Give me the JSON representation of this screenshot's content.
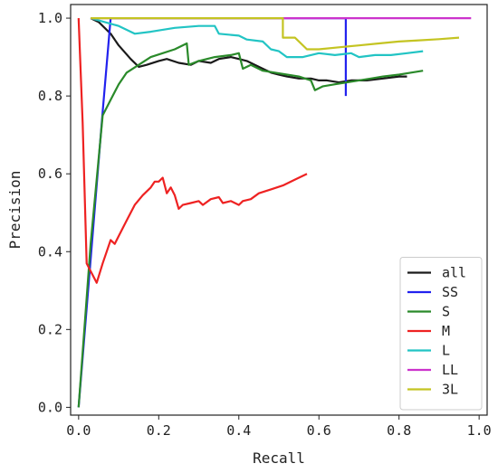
{
  "chart_data": {
    "type": "line",
    "title": "",
    "xlabel": "Recall",
    "ylabel": "Precision",
    "xlim": [
      -0.02,
      1.02
    ],
    "ylim": [
      -0.02,
      1.035
    ],
    "xticks": [
      "0.0",
      "0.2",
      "0.4",
      "0.6",
      "0.8",
      "1.0"
    ],
    "xtick_values": [
      0.0,
      0.2,
      0.4,
      0.6,
      0.8,
      1.0
    ],
    "yticks": [
      "0.0",
      "0.2",
      "0.4",
      "0.6",
      "0.8",
      "1.0"
    ],
    "ytick_values": [
      0.0,
      0.2,
      0.4,
      0.6,
      0.8,
      1.0
    ],
    "grid": false,
    "legend_position": "lower-right",
    "series": [
      {
        "name": "all",
        "color": "#1a1a1a",
        "points": [
          [
            0.03,
            1.0
          ],
          [
            0.05,
            0.99
          ],
          [
            0.08,
            0.96
          ],
          [
            0.1,
            0.93
          ],
          [
            0.13,
            0.895
          ],
          [
            0.15,
            0.875
          ],
          [
            0.17,
            0.88
          ],
          [
            0.2,
            0.89
          ],
          [
            0.22,
            0.895
          ],
          [
            0.25,
            0.885
          ],
          [
            0.28,
            0.88
          ],
          [
            0.3,
            0.89
          ],
          [
            0.33,
            0.885
          ],
          [
            0.35,
            0.895
          ],
          [
            0.38,
            0.9
          ],
          [
            0.4,
            0.895
          ],
          [
            0.42,
            0.89
          ],
          [
            0.44,
            0.88
          ],
          [
            0.46,
            0.87
          ],
          [
            0.48,
            0.86
          ],
          [
            0.5,
            0.855
          ],
          [
            0.52,
            0.85
          ],
          [
            0.55,
            0.845
          ],
          [
            0.58,
            0.845
          ],
          [
            0.6,
            0.84
          ],
          [
            0.62,
            0.84
          ],
          [
            0.65,
            0.835
          ],
          [
            0.68,
            0.84
          ],
          [
            0.72,
            0.84
          ],
          [
            0.76,
            0.845
          ],
          [
            0.8,
            0.85
          ],
          [
            0.82,
            0.85
          ]
        ]
      },
      {
        "name": "SS",
        "color": "#2222ee",
        "points": [
          [
            0.0,
            0.0
          ],
          [
            0.06,
            0.76
          ],
          [
            0.08,
            1.0
          ],
          [
            0.667,
            1.0
          ],
          [
            0.667,
            0.8
          ]
        ]
      },
      {
        "name": "S",
        "color": "#2a8a2a",
        "points": [
          [
            0.0,
            0.0
          ],
          [
            0.03,
            0.42
          ],
          [
            0.06,
            0.75
          ],
          [
            0.08,
            0.79
          ],
          [
            0.1,
            0.83
          ],
          [
            0.12,
            0.86
          ],
          [
            0.15,
            0.88
          ],
          [
            0.18,
            0.9
          ],
          [
            0.21,
            0.91
          ],
          [
            0.24,
            0.92
          ],
          [
            0.27,
            0.935
          ],
          [
            0.275,
            0.88
          ],
          [
            0.3,
            0.89
          ],
          [
            0.34,
            0.9
          ],
          [
            0.38,
            0.905
          ],
          [
            0.4,
            0.91
          ],
          [
            0.41,
            0.87
          ],
          [
            0.43,
            0.88
          ],
          [
            0.46,
            0.865
          ],
          [
            0.49,
            0.86
          ],
          [
            0.52,
            0.855
          ],
          [
            0.55,
            0.85
          ],
          [
            0.58,
            0.84
          ],
          [
            0.59,
            0.815
          ],
          [
            0.61,
            0.825
          ],
          [
            0.64,
            0.83
          ],
          [
            0.67,
            0.835
          ],
          [
            0.7,
            0.84
          ],
          [
            0.73,
            0.845
          ],
          [
            0.76,
            0.85
          ],
          [
            0.8,
            0.855
          ],
          [
            0.83,
            0.86
          ],
          [
            0.86,
            0.865
          ]
        ]
      },
      {
        "name": "M",
        "color": "#ee2222",
        "points": [
          [
            0.0,
            1.0
          ],
          [
            0.01,
            0.73
          ],
          [
            0.02,
            0.37
          ],
          [
            0.03,
            0.35
          ],
          [
            0.045,
            0.32
          ],
          [
            0.06,
            0.37
          ],
          [
            0.07,
            0.4
          ],
          [
            0.08,
            0.43
          ],
          [
            0.09,
            0.42
          ],
          [
            0.1,
            0.44
          ],
          [
            0.12,
            0.48
          ],
          [
            0.14,
            0.52
          ],
          [
            0.16,
            0.545
          ],
          [
            0.18,
            0.565
          ],
          [
            0.19,
            0.58
          ],
          [
            0.2,
            0.58
          ],
          [
            0.21,
            0.59
          ],
          [
            0.22,
            0.55
          ],
          [
            0.23,
            0.565
          ],
          [
            0.24,
            0.545
          ],
          [
            0.25,
            0.51
          ],
          [
            0.26,
            0.52
          ],
          [
            0.28,
            0.525
          ],
          [
            0.3,
            0.53
          ],
          [
            0.31,
            0.52
          ],
          [
            0.33,
            0.535
          ],
          [
            0.35,
            0.54
          ],
          [
            0.36,
            0.525
          ],
          [
            0.38,
            0.53
          ],
          [
            0.4,
            0.52
          ],
          [
            0.41,
            0.53
          ],
          [
            0.43,
            0.535
          ],
          [
            0.45,
            0.55
          ],
          [
            0.48,
            0.56
          ],
          [
            0.51,
            0.57
          ],
          [
            0.54,
            0.585
          ],
          [
            0.57,
            0.6
          ]
        ]
      },
      {
        "name": "L",
        "color": "#22c4c4",
        "points": [
          [
            0.03,
            1.0
          ],
          [
            0.1,
            0.98
          ],
          [
            0.14,
            0.96
          ],
          [
            0.18,
            0.965
          ],
          [
            0.24,
            0.975
          ],
          [
            0.3,
            0.98
          ],
          [
            0.34,
            0.98
          ],
          [
            0.35,
            0.96
          ],
          [
            0.4,
            0.955
          ],
          [
            0.42,
            0.945
          ],
          [
            0.46,
            0.94
          ],
          [
            0.48,
            0.92
          ],
          [
            0.5,
            0.915
          ],
          [
            0.52,
            0.9
          ],
          [
            0.56,
            0.9
          ],
          [
            0.6,
            0.91
          ],
          [
            0.64,
            0.905
          ],
          [
            0.68,
            0.91
          ],
          [
            0.7,
            0.9
          ],
          [
            0.74,
            0.905
          ],
          [
            0.78,
            0.905
          ],
          [
            0.82,
            0.91
          ],
          [
            0.86,
            0.915
          ]
        ]
      },
      {
        "name": "LL",
        "color": "#cc33cc",
        "points": [
          [
            0.03,
            1.0
          ],
          [
            0.98,
            1.0
          ]
        ]
      },
      {
        "name": "3L",
        "color": "#c4c422",
        "points": [
          [
            0.03,
            1.0
          ],
          [
            0.51,
            1.0
          ],
          [
            0.51,
            0.95
          ],
          [
            0.54,
            0.95
          ],
          [
            0.57,
            0.92
          ],
          [
            0.6,
            0.92
          ],
          [
            0.65,
            0.925
          ],
          [
            0.7,
            0.93
          ],
          [
            0.75,
            0.935
          ],
          [
            0.8,
            0.94
          ],
          [
            0.85,
            0.943
          ],
          [
            0.9,
            0.946
          ],
          [
            0.95,
            0.95
          ]
        ]
      }
    ]
  }
}
